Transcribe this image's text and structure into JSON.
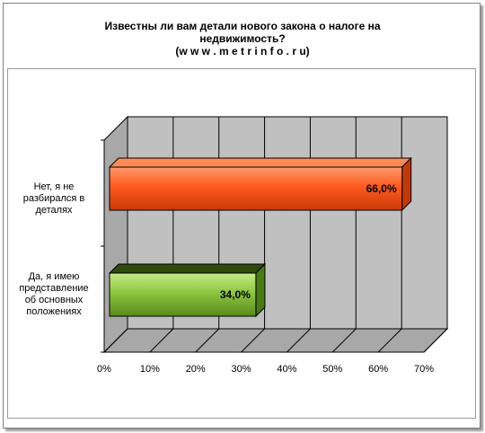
{
  "chart_data": {
    "type": "bar",
    "orientation": "horizontal",
    "title": [
      "Известны ли вам детали  нового закона о налоге на",
      "недвижимость?",
      "(w w w . m e t r i n f o . r u)"
    ],
    "categories": [
      [
        "Нет, я не",
        "разбирался в",
        "деталях"
      ],
      [
        "Да, я имею",
        "представление",
        "об основных",
        "положениях"
      ]
    ],
    "values": [
      66.0,
      34.0
    ],
    "value_labels": [
      "66,0%",
      "34,0%"
    ],
    "colors": [
      "#ff5a1f",
      "#8dc63f"
    ],
    "xlim": [
      0,
      70
    ],
    "ticks": [
      0,
      10,
      20,
      30,
      40,
      50,
      60,
      70
    ],
    "tick_labels": [
      "0%",
      "10%",
      "20%",
      "30%",
      "40%",
      "50%",
      "60%",
      "70%"
    ],
    "grid": true,
    "style": "3d"
  }
}
